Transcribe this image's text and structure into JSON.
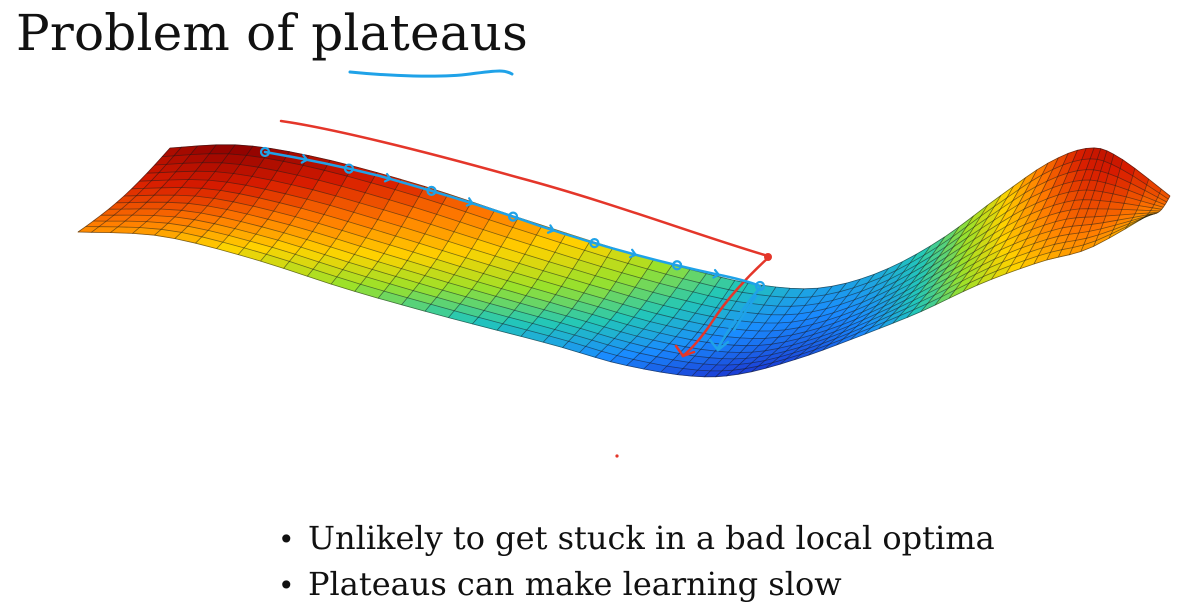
{
  "slide": {
    "title_part1": "Problem of ",
    "title_part2": "plateaus",
    "bullets": [
      "Unlikely to get stuck in a bad local optima",
      "Plateaus can make learning slow"
    ],
    "bullet_symbol": "•"
  },
  "figure": {
    "type": "3d-surface",
    "colormap": [
      "#8a0000",
      "#d81c00",
      "#ff7a00",
      "#ffd200",
      "#9be12a",
      "#23c7b8",
      "#1a8cff",
      "#1b3fd6",
      "#102b9c"
    ],
    "grid_line_color": "#1a1a1a"
  },
  "annotations": {
    "blue_ink": "#1fa2e8",
    "red_ink": "#e4362a"
  }
}
